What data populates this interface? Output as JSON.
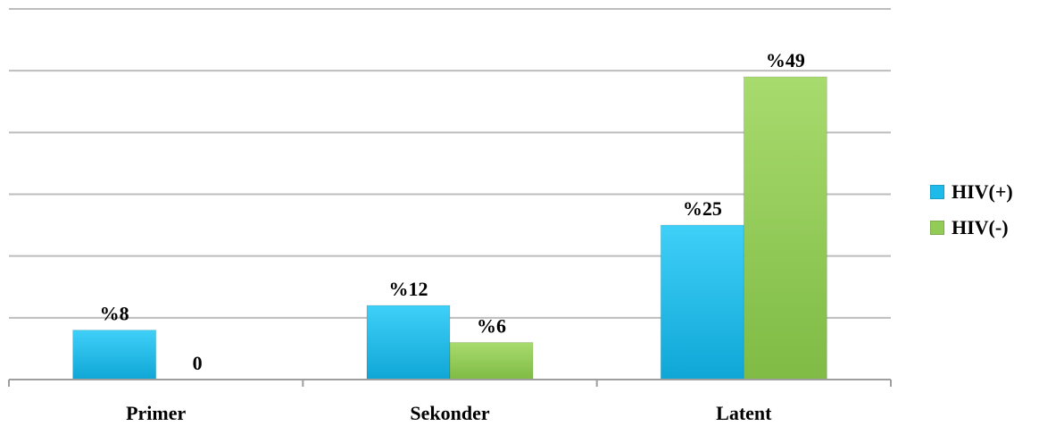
{
  "chart_data": {
    "type": "bar",
    "title": "",
    "xlabel": "",
    "ylabel": "",
    "categories": [
      "Primer",
      "Sekonder",
      "Latent"
    ],
    "series": [
      {
        "name": "HIV(+)",
        "values": [
          8,
          12,
          25
        ],
        "labels": [
          "%8",
          "%12",
          "%25"
        ],
        "color": "#1EBBEA"
      },
      {
        "name": "HIV(-)",
        "values": [
          0,
          6,
          49
        ],
        "labels": [
          "0",
          "%6",
          "%49"
        ],
        "color": "#93CB57"
      }
    ],
    "ylim": [
      0,
      60
    ],
    "grid": true,
    "legend_position": "right"
  }
}
